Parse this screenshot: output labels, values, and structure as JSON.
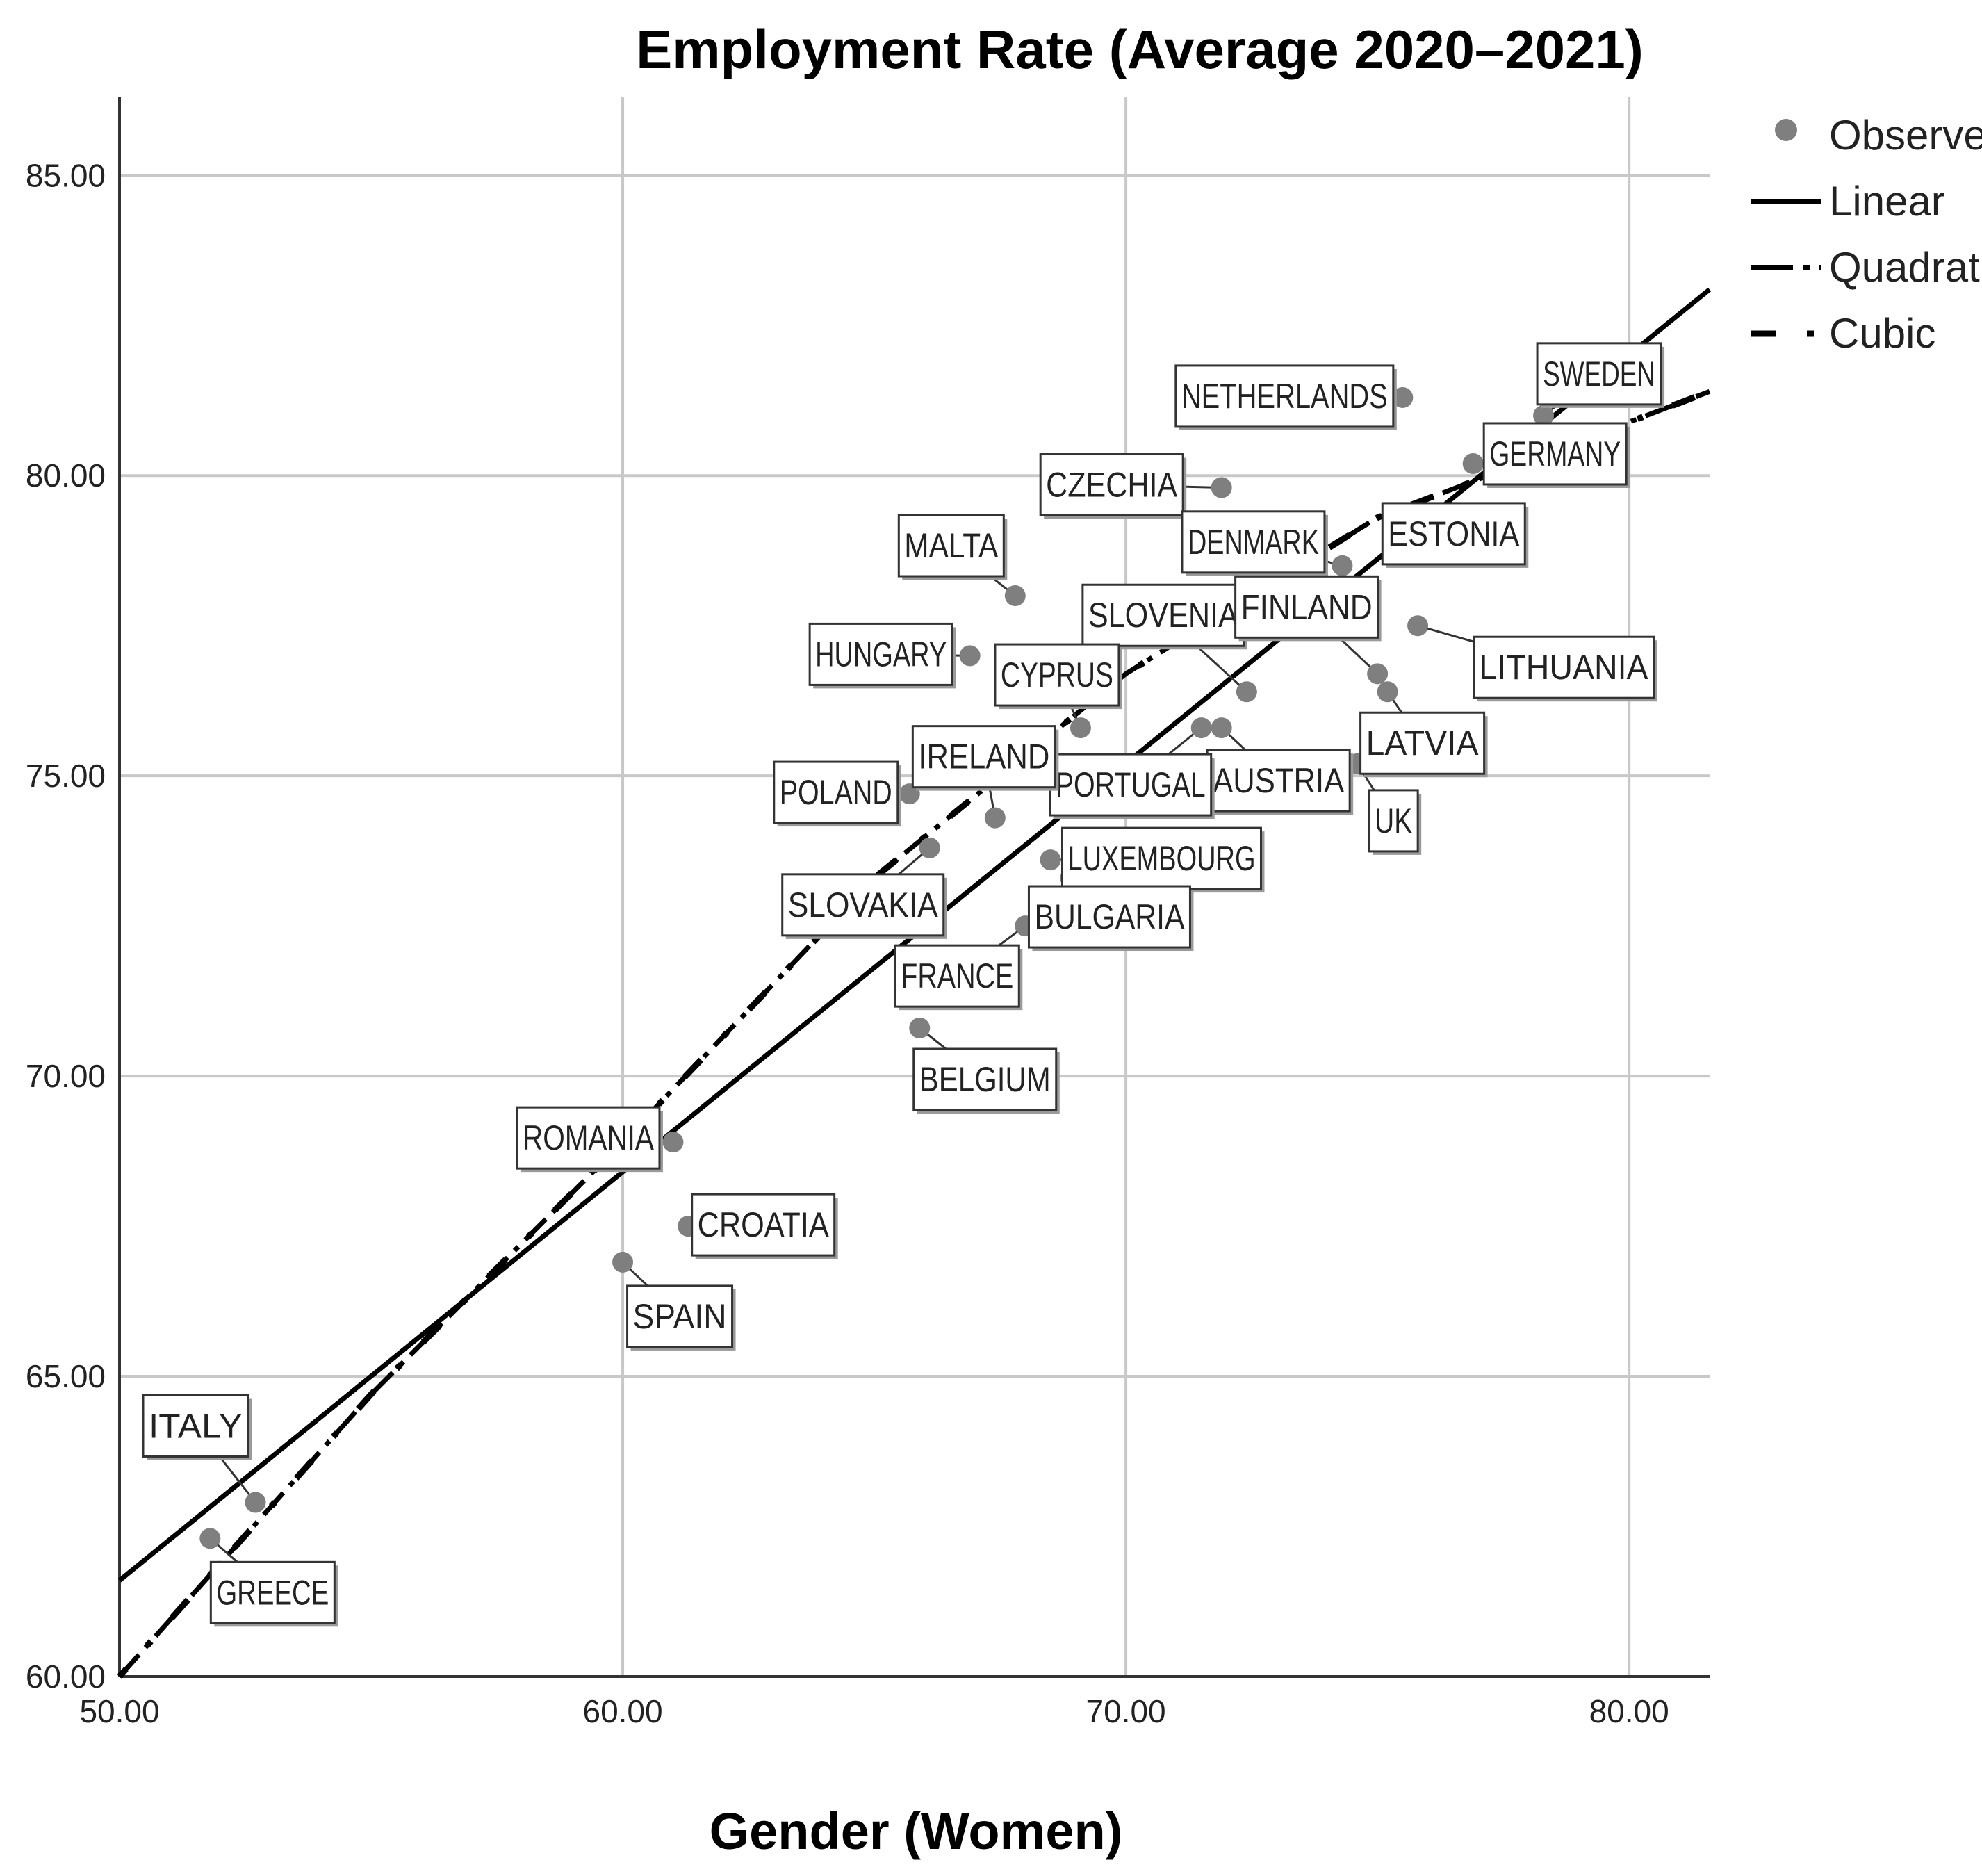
{
  "chart_data": {
    "type": "scatter",
    "title": "Employment Rate (Average 2020–2021)",
    "xlabel": "Gender (Women)",
    "ylabel": "",
    "xlim": [
      50,
      81.6
    ],
    "ylim": [
      60,
      86.3
    ],
    "xticks": [
      "50.00",
      "60.00",
      "70.00",
      "80.00"
    ],
    "yticks": [
      "60.00",
      "65.00",
      "70.00",
      "75.00",
      "80.00",
      "85.00"
    ],
    "grid": true,
    "legend_position": "right",
    "legend": [
      {
        "name": "Observed",
        "style": "marker"
      },
      {
        "name": "Linear",
        "style": "solid"
      },
      {
        "name": "Quadratic",
        "style": "dash-dot"
      },
      {
        "name": "Cubic",
        "style": "dash-dot-sparse"
      }
    ],
    "points": [
      {
        "label": "SWEDEN",
        "x": 78.3,
        "y": 81.0
      },
      {
        "label": "NETHERLANDS",
        "x": 75.5,
        "y": 81.3
      },
      {
        "label": "GERMANY",
        "x": 76.9,
        "y": 80.2
      },
      {
        "label": "CZECHIA",
        "x": 71.9,
        "y": 79.8
      },
      {
        "label": "DENMARK",
        "x": 74.3,
        "y": 78.5
      },
      {
        "label": "ESTONIA",
        "x": 76.1,
        "y": 78.8
      },
      {
        "label": "MALTA",
        "x": 67.8,
        "y": 78.0
      },
      {
        "label": "LITHUANIA",
        "x": 75.8,
        "y": 77.5
      },
      {
        "label": "HUNGARY",
        "x": 66.9,
        "y": 77.0
      },
      {
        "label": "SLOVENIA",
        "x": 72.4,
        "y": 76.4
      },
      {
        "label": "FINLAND",
        "x": 75.0,
        "y": 76.7
      },
      {
        "label": "LATVIA",
        "x": 75.2,
        "y": 76.4
      },
      {
        "label": "CYPRUS",
        "x": 69.1,
        "y": 75.8
      },
      {
        "label": "AUSTRIA",
        "x": 71.9,
        "y": 75.8
      },
      {
        "label": "PORTUGAL",
        "x": 71.5,
        "y": 75.8
      },
      {
        "label": "UK",
        "x": 74.6,
        "y": 75.2
      },
      {
        "label": "POLAND",
        "x": 65.7,
        "y": 74.7
      },
      {
        "label": "IRELAND",
        "x": 67.4,
        "y": 74.3
      },
      {
        "label": "SLOVAKIA",
        "x": 66.1,
        "y": 73.8
      },
      {
        "label": "LUXEMBOURG",
        "x": 68.5,
        "y": 73.6
      },
      {
        "label": "BULGARIA",
        "x": 68.9,
        "y": 73.3
      },
      {
        "label": "FRANCE",
        "x": 68.0,
        "y": 72.5
      },
      {
        "label": "BELGIUM",
        "x": 65.9,
        "y": 70.8
      },
      {
        "label": "ROMANIA",
        "x": 61.0,
        "y": 68.9
      },
      {
        "label": "CROATIA",
        "x": 61.3,
        "y": 67.5
      },
      {
        "label": "SPAIN",
        "x": 60.0,
        "y": 66.9
      },
      {
        "label": "ITALY",
        "x": 52.7,
        "y": 62.9
      },
      {
        "label": "GREECE",
        "x": 51.8,
        "y": 62.3
      }
    ],
    "fits": {
      "linear": {
        "name": "Linear",
        "x_start": 50.0,
        "y_start": 61.6,
        "x_end": 81.6,
        "y_end": 83.1
      },
      "quadratic": {
        "name": "Quadratic",
        "points": [
          [
            50.0,
            60.0
          ],
          [
            55,
            64.7
          ],
          [
            60,
            68.9
          ],
          [
            65,
            73.3
          ],
          [
            70,
            76.7
          ],
          [
            75,
            79.3
          ],
          [
            81.6,
            81.4
          ]
        ]
      },
      "cubic": {
        "name": "Cubic",
        "points": [
          [
            50.0,
            60.0
          ],
          [
            55,
            64.7
          ],
          [
            60,
            68.9
          ],
          [
            65,
            73.3
          ],
          [
            70,
            76.7
          ],
          [
            75,
            79.3
          ],
          [
            81.6,
            81.4
          ]
        ]
      }
    }
  }
}
